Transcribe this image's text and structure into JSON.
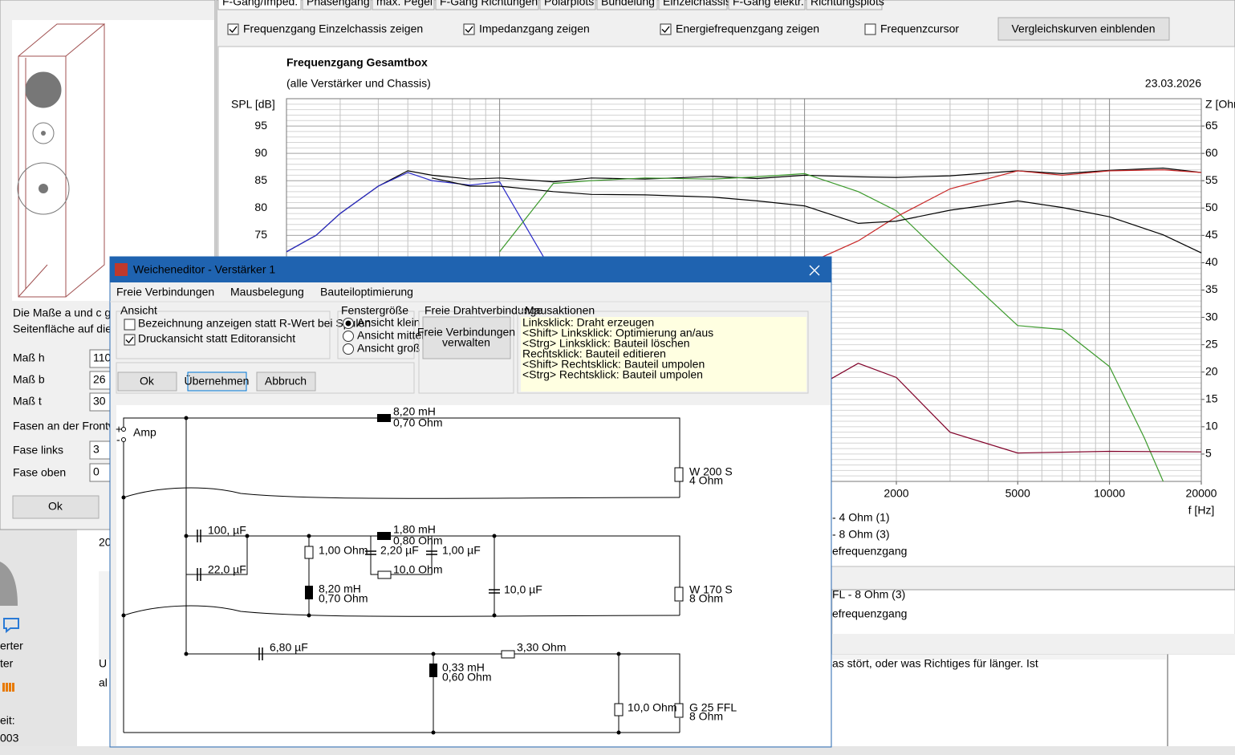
{
  "left_panel": {
    "note_lines": [
      "Die Maße a und c ge",
      "Seitenfläche auf die"
    ],
    "fields": [
      {
        "label": "Maß h",
        "value": "110"
      },
      {
        "label": "Maß b",
        "value": "26"
      },
      {
        "label": "Maß t",
        "value": "30"
      }
    ],
    "fase_heading": "Fasen an der Frontw",
    "fase_fields": [
      {
        "label": "Fase links",
        "value": "3"
      },
      {
        "label": "Fase oben",
        "value": "0"
      }
    ],
    "ok": "Ok"
  },
  "tabs": [
    "F-Gang/Imped.",
    "Phasengang",
    "max. Pegel",
    "F-Gang Richtungen",
    "Polarplots",
    "Bündelung",
    "Einzelchassis",
    "F-Gang elektr.",
    "Richtungsplots"
  ],
  "options": [
    {
      "label": "Frequenzgang Einzelchassis zeigen",
      "checked": true
    },
    {
      "label": "Impedanzgang zeigen",
      "checked": true
    },
    {
      "label": "Energiefrequenzgang zeigen",
      "checked": true
    },
    {
      "label": "Frequenzcursor",
      "checked": false
    }
  ],
  "compare_button": "Vergleichskurven einblenden",
  "chart_data": {
    "type": "line",
    "title": "Frequenzgang Gesamtbox",
    "subtitle": "(alle Verstärker und Chassis)",
    "date": "23.03.2026",
    "ylabel": "SPL [dB]",
    "y2label": "Z [Ohm]",
    "xlabel": "f [Hz]",
    "xscale": "log",
    "grid": true,
    "xlim": [
      20,
      20000
    ],
    "xticks": [
      2000,
      5000,
      10000,
      20000
    ],
    "ylim": [
      30,
      100
    ],
    "yticks": [
      75,
      80,
      85,
      90,
      95
    ],
    "y2lim": [
      0,
      70
    ],
    "y2ticks": [
      5,
      10,
      15,
      20,
      25,
      30,
      35,
      40,
      45,
      50,
      55,
      60,
      65
    ],
    "series": [
      {
        "color": "#000000",
        "x": [
          20,
          25,
          30,
          40,
          50,
          60,
          80,
          100,
          150,
          200,
          300,
          500,
          700,
          1000,
          1500,
          2000,
          3000,
          5000,
          7000,
          10000,
          15000,
          20000
        ],
        "values": [
          72,
          75,
          79,
          84,
          86.8,
          86,
          85.3,
          85.5,
          84.8,
          85.5,
          85.3,
          85.8,
          85.4,
          86,
          85.7,
          85.6,
          85.9,
          86.8,
          86.3,
          86.9,
          87.3,
          86.5
        ]
      },
      {
        "color": "#2828c8",
        "x": [
          20,
          25,
          30,
          40,
          50,
          60,
          80,
          100,
          150
        ],
        "values": [
          72,
          75,
          79,
          84,
          86.5,
          85,
          84.2,
          84.8,
          68
        ]
      },
      {
        "color": "#3c9a2c",
        "x": [
          100,
          150,
          200,
          300,
          500,
          700,
          1000,
          1500,
          2000,
          3000,
          5000,
          7000,
          10000,
          13000,
          15000
        ],
        "values": [
          72,
          84.5,
          85,
          85.5,
          85.3,
          85.7,
          86.3,
          83,
          79.5,
          70,
          58.5,
          57.8,
          51,
          38,
          30
        ]
      },
      {
        "color": "#c82828",
        "x": [
          700,
          1000,
          1500,
          2000,
          3000,
          5000,
          7000,
          10000,
          15000,
          20000
        ],
        "values": [
          64,
          69.6,
          74,
          78.4,
          83.5,
          86.8,
          86,
          86.8,
          87,
          86.5
        ]
      },
      {
        "color": "#000000",
        "x": [
          60,
          80,
          100,
          150,
          200,
          300,
          500,
          700,
          1000,
          1500,
          2000,
          3000,
          5000,
          7000,
          10000,
          15000,
          20000
        ],
        "values": [
          85.5,
          84,
          84,
          83,
          82.5,
          82.4,
          82,
          81.3,
          80.4,
          77.2,
          77.6,
          79.6,
          81.3,
          80.1,
          78.4,
          75.1,
          71.8
        ]
      },
      {
        "color": "#800028",
        "axis": "y2",
        "x": [
          1000,
          1500,
          2000,
          3000,
          5000,
          10000,
          20000
        ],
        "values": [
          16,
          21.6,
          19,
          9,
          5.2,
          5.5,
          5.4
        ]
      }
    ]
  },
  "legend_fragments": [
    "- 4 Ohm (1)",
    "- 8 Ohm (3)",
    "efrequenzgang"
  ],
  "lower_window_fragments": [
    "FL - 8 Ohm (3)",
    "efrequenzgang"
  ],
  "forum_fragments": [
    "20",
    "erter",
    "ter",
    "eit:",
    "003",
    "U",
    "al",
    "as stört, oder was Richtiges für länger. Ist"
  ],
  "dialog": {
    "title": "Weicheneditor - Verstärker 1",
    "menu": [
      "Freie Verbindungen",
      "Mausbelegung",
      "Bauteiloptimierung"
    ],
    "ansicht": {
      "heading": "Ansicht",
      "options": [
        {
          "label": "Bezeichnung anzeigen statt R-Wert bei Spulen",
          "checked": false
        },
        {
          "label": "Druckansicht statt Editoransicht",
          "checked": true
        }
      ]
    },
    "fenster": {
      "heading": "Fenstergröße",
      "options": [
        {
          "label": "Ansicht klein",
          "selected": true
        },
        {
          "label": "Ansicht mittel",
          "selected": false
        },
        {
          "label": "Ansicht groß",
          "selected": false
        }
      ]
    },
    "draht": {
      "heading": "Freie Drahtverbindunge",
      "button": [
        "Freie Verbindungen",
        "verwalten"
      ]
    },
    "maus": {
      "heading": "Mausaktionen",
      "lines": [
        "Linksklick: Draht erzeugen",
        "<Shift> Linksklick: Optimierung an/aus",
        "<Strg> Linksklick: Bauteil löschen",
        "Rechtsklick: Bauteil editieren",
        "<Shift> Rechtsklick: Bauteil umpolen",
        "<Strg> Rechtsklick: Bauteil umpolen"
      ]
    },
    "buttons": [
      "Ok",
      "Übernehmen",
      "Abbruch"
    ],
    "schematic": [
      "+",
      "-",
      "Amp",
      "8,20 mH",
      "0,70 Ohm",
      "W 200 S",
      "4 Ohm",
      "100, µF",
      "22,0 µF",
      "1,00 Ohm",
      "1,80 mH",
      "0,80 Ohm",
      "2,20 µF",
      "1,00 µF",
      "10,0 Ohm",
      "8,20 mH",
      "0,70 Ohm",
      "10,0 µF",
      "W 170 S",
      "8 Ohm",
      "6,80 µF",
      "3,30 Ohm",
      "0,33 mH",
      "0,60 Ohm",
      "10,0 Ohm",
      "G 25 FFL",
      "8 Ohm"
    ]
  }
}
